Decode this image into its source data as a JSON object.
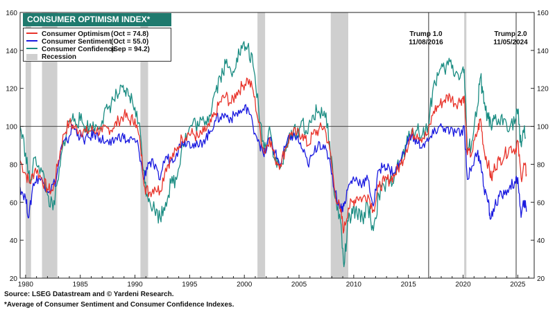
{
  "chart_data": {
    "type": "line",
    "title": "CONSUMER OPTIMISM INDEX*",
    "x_ticks": [
      "1980",
      "1985",
      "1990",
      "1995",
      "2000",
      "2005",
      "2010",
      "2015",
      "2020",
      "2025"
    ],
    "y_ticks": [
      "20",
      "40",
      "60",
      "80",
      "100",
      "120",
      "140",
      "160"
    ],
    "xlim": [
      1979.5,
      2026.5
    ],
    "ylim": [
      20,
      160
    ],
    "reference_line": 100,
    "grid": false,
    "legend_position": "top-left",
    "series": [
      {
        "name": "Consumer Optimism",
        "legend_value": "(Oct = 74.8)",
        "color": "#e8332a",
        "points": [
          [
            1979.5,
            82
          ],
          [
            1980.0,
            75
          ],
          [
            1980.4,
            70
          ],
          [
            1980.9,
            78
          ],
          [
            1981.5,
            72
          ],
          [
            1982.0,
            67
          ],
          [
            1982.5,
            66
          ],
          [
            1983.0,
            82
          ],
          [
            1983.5,
            96
          ],
          [
            1984.0,
            102
          ],
          [
            1984.5,
            99
          ],
          [
            1985.0,
            98
          ],
          [
            1985.5,
            97
          ],
          [
            1986.0,
            98
          ],
          [
            1986.5,
            98
          ],
          [
            1987.0,
            97
          ],
          [
            1987.5,
            99
          ],
          [
            1988.0,
            99
          ],
          [
            1988.5,
            103
          ],
          [
            1989.0,
            106
          ],
          [
            1989.5,
            103
          ],
          [
            1990.0,
            104
          ],
          [
            1990.5,
            90
          ],
          [
            1990.9,
            68
          ],
          [
            1991.3,
            65
          ],
          [
            1991.8,
            68
          ],
          [
            1992.3,
            66
          ],
          [
            1992.8,
            78
          ],
          [
            1993.3,
            83
          ],
          [
            1993.8,
            87
          ],
          [
            1994.3,
            94
          ],
          [
            1994.8,
            96
          ],
          [
            1995.3,
            96
          ],
          [
            1995.8,
            94
          ],
          [
            1996.3,
            97
          ],
          [
            1996.8,
            100
          ],
          [
            1997.3,
            106
          ],
          [
            1997.8,
            113
          ],
          [
            1998.3,
            116
          ],
          [
            1998.8,
            112
          ],
          [
            1999.3,
            118
          ],
          [
            1999.8,
            121
          ],
          [
            2000.3,
            125
          ],
          [
            2000.8,
            119
          ],
          [
            2001.3,
            102
          ],
          [
            2001.8,
            86
          ],
          [
            2002.3,
            94
          ],
          [
            2002.8,
            83
          ],
          [
            2003.3,
            80
          ],
          [
            2003.8,
            89
          ],
          [
            2004.3,
            97
          ],
          [
            2004.8,
            96
          ],
          [
            2005.3,
            96
          ],
          [
            2005.8,
            90
          ],
          [
            2006.3,
            96
          ],
          [
            2006.8,
            98
          ],
          [
            2007.3,
            100
          ],
          [
            2007.8,
            88
          ],
          [
            2008.3,
            65
          ],
          [
            2008.8,
            55
          ],
          [
            2009.1,
            45
          ],
          [
            2009.5,
            57
          ],
          [
            2009.9,
            60
          ],
          [
            2010.3,
            63
          ],
          [
            2010.8,
            62
          ],
          [
            2011.3,
            64
          ],
          [
            2011.8,
            56
          ],
          [
            2012.3,
            68
          ],
          [
            2012.8,
            71
          ],
          [
            2013.3,
            72
          ],
          [
            2013.8,
            75
          ],
          [
            2014.3,
            80
          ],
          [
            2014.8,
            88
          ],
          [
            2015.3,
            96
          ],
          [
            2015.8,
            96
          ],
          [
            2016.3,
            94
          ],
          [
            2016.8,
            96
          ],
          [
            2017.3,
            108
          ],
          [
            2017.8,
            111
          ],
          [
            2018.3,
            114
          ],
          [
            2018.8,
            116
          ],
          [
            2019.3,
            112
          ],
          [
            2019.8,
            114
          ],
          [
            2020.1,
            116
          ],
          [
            2020.4,
            85
          ],
          [
            2020.8,
            86
          ],
          [
            2021.3,
            97
          ],
          [
            2021.6,
            104
          ],
          [
            2021.9,
            88
          ],
          [
            2022.3,
            80
          ],
          [
            2022.6,
            72
          ],
          [
            2022.9,
            79
          ],
          [
            2023.3,
            82
          ],
          [
            2023.8,
            85
          ],
          [
            2024.3,
            89
          ],
          [
            2024.8,
            88
          ],
          [
            2025.0,
            92
          ],
          [
            2025.3,
            73
          ],
          [
            2025.6,
            80
          ],
          [
            2025.79,
            74.8
          ]
        ]
      },
      {
        "name": "Consumer Sentiment",
        "legend_value": "(Oct = 55.0)",
        "color": "#1a1adf",
        "points": [
          [
            1979.5,
            68
          ],
          [
            1980.0,
            62
          ],
          [
            1980.3,
            52
          ],
          [
            1980.7,
            70
          ],
          [
            1981.2,
            73
          ],
          [
            1981.7,
            70
          ],
          [
            1982.2,
            66
          ],
          [
            1982.8,
            72
          ],
          [
            1983.3,
            90
          ],
          [
            1983.8,
            92
          ],
          [
            1984.3,
            100
          ],
          [
            1984.8,
            96
          ],
          [
            1985.3,
            93
          ],
          [
            1985.8,
            94
          ],
          [
            1986.3,
            96
          ],
          [
            1986.8,
            94
          ],
          [
            1987.3,
            92
          ],
          [
            1987.8,
            90
          ],
          [
            1988.3,
            94
          ],
          [
            1988.8,
            95
          ],
          [
            1989.3,
            92
          ],
          [
            1989.8,
            93
          ],
          [
            1990.3,
            90
          ],
          [
            1990.8,
            72
          ],
          [
            1991.2,
            81
          ],
          [
            1991.7,
            80
          ],
          [
            1992.2,
            72
          ],
          [
            1992.8,
            84
          ],
          [
            1993.3,
            82
          ],
          [
            1993.8,
            86
          ],
          [
            1994.3,
            92
          ],
          [
            1994.8,
            92
          ],
          [
            1995.3,
            91
          ],
          [
            1995.8,
            89
          ],
          [
            1996.3,
            93
          ],
          [
            1996.8,
            96
          ],
          [
            1997.3,
            103
          ],
          [
            1997.8,
            105
          ],
          [
            1998.3,
            106
          ],
          [
            1998.8,
            104
          ],
          [
            1999.3,
            107
          ],
          [
            1999.8,
            108
          ],
          [
            2000.3,
            110
          ],
          [
            2000.8,
            100
          ],
          [
            2001.3,
            93
          ],
          [
            2001.8,
            84
          ],
          [
            2002.3,
            94
          ],
          [
            2002.8,
            86
          ],
          [
            2003.3,
            80
          ],
          [
            2003.8,
            90
          ],
          [
            2004.3,
            95
          ],
          [
            2004.8,
            94
          ],
          [
            2005.3,
            88
          ],
          [
            2005.8,
            80
          ],
          [
            2006.3,
            85
          ],
          [
            2006.8,
            92
          ],
          [
            2007.3,
            88
          ],
          [
            2007.8,
            83
          ],
          [
            2008.3,
            65
          ],
          [
            2008.8,
            57
          ],
          [
            2009.1,
            58
          ],
          [
            2009.5,
            68
          ],
          [
            2009.9,
            72
          ],
          [
            2010.3,
            72
          ],
          [
            2010.8,
            70
          ],
          [
            2011.3,
            72
          ],
          [
            2011.8,
            58
          ],
          [
            2012.3,
            77
          ],
          [
            2012.8,
            80
          ],
          [
            2013.3,
            77
          ],
          [
            2013.8,
            76
          ],
          [
            2014.3,
            82
          ],
          [
            2014.8,
            90
          ],
          [
            2015.3,
            95
          ],
          [
            2015.8,
            91
          ],
          [
            2016.3,
            90
          ],
          [
            2016.8,
            92
          ],
          [
            2017.3,
            96
          ],
          [
            2017.8,
            100
          ],
          [
            2018.3,
            99
          ],
          [
            2018.8,
            97
          ],
          [
            2019.3,
            97
          ],
          [
            2019.8,
            96
          ],
          [
            2020.1,
            100
          ],
          [
            2020.4,
            72
          ],
          [
            2020.8,
            79
          ],
          [
            2021.3,
            86
          ],
          [
            2021.6,
            82
          ],
          [
            2021.9,
            68
          ],
          [
            2022.3,
            60
          ],
          [
            2022.5,
            51
          ],
          [
            2022.9,
            58
          ],
          [
            2023.3,
            63
          ],
          [
            2023.8,
            64
          ],
          [
            2024.3,
            69
          ],
          [
            2024.8,
            70
          ],
          [
            2025.0,
            73
          ],
          [
            2025.3,
            52
          ],
          [
            2025.6,
            61
          ],
          [
            2025.79,
            55.0
          ]
        ]
      },
      {
        "name": "Consumer Confidence",
        "legend_value": "(Sep = 94.2)",
        "color": "#1a8c82",
        "points": [
          [
            1979.5,
            100
          ],
          [
            1980.0,
            86
          ],
          [
            1980.4,
            70
          ],
          [
            1980.9,
            84
          ],
          [
            1981.5,
            76
          ],
          [
            1982.0,
            64
          ],
          [
            1982.5,
            56
          ],
          [
            1983.0,
            72
          ],
          [
            1983.5,
            92
          ],
          [
            1984.0,
            103
          ],
          [
            1984.5,
            104
          ],
          [
            1985.0,
            103
          ],
          [
            1985.5,
            100
          ],
          [
            1986.0,
            99
          ],
          [
            1986.5,
            100
          ],
          [
            1987.0,
            103
          ],
          [
            1987.5,
            109
          ],
          [
            1988.0,
            114
          ],
          [
            1988.5,
            117
          ],
          [
            1989.0,
            118
          ],
          [
            1989.5,
            116
          ],
          [
            1990.0,
            110
          ],
          [
            1990.5,
            96
          ],
          [
            1990.9,
            70
          ],
          [
            1991.3,
            62
          ],
          [
            1991.8,
            56
          ],
          [
            1992.3,
            52
          ],
          [
            1992.8,
            60
          ],
          [
            1993.3,
            70
          ],
          [
            1993.8,
            72
          ],
          [
            1994.3,
            90
          ],
          [
            1994.8,
            96
          ],
          [
            1995.3,
            102
          ],
          [
            1995.8,
            100
          ],
          [
            1996.3,
            103
          ],
          [
            1996.8,
            106
          ],
          [
            1997.3,
            118
          ],
          [
            1997.8,
            126
          ],
          [
            1998.3,
            133
          ],
          [
            1998.8,
            128
          ],
          [
            1999.3,
            136
          ],
          [
            1999.8,
            141
          ],
          [
            2000.3,
            142
          ],
          [
            2000.8,
            132
          ],
          [
            2001.3,
            110
          ],
          [
            2001.8,
            88
          ],
          [
            2002.3,
            100
          ],
          [
            2002.8,
            82
          ],
          [
            2003.3,
            78
          ],
          [
            2003.8,
            87
          ],
          [
            2004.3,
            98
          ],
          [
            2004.8,
            96
          ],
          [
            2005.3,
            103
          ],
          [
            2005.8,
            96
          ],
          [
            2006.3,
            106
          ],
          [
            2006.8,
            108
          ],
          [
            2007.3,
            108
          ],
          [
            2007.8,
            92
          ],
          [
            2008.3,
            62
          ],
          [
            2008.8,
            50
          ],
          [
            2009.1,
            26
          ],
          [
            2009.5,
            50
          ],
          [
            2009.9,
            54
          ],
          [
            2010.3,
            54
          ],
          [
            2010.8,
            52
          ],
          [
            2011.3,
            58
          ],
          [
            2011.8,
            45
          ],
          [
            2012.3,
            64
          ],
          [
            2012.8,
            68
          ],
          [
            2013.3,
            70
          ],
          [
            2013.8,
            76
          ],
          [
            2014.3,
            80
          ],
          [
            2014.8,
            90
          ],
          [
            2015.3,
            98
          ],
          [
            2015.8,
            98
          ],
          [
            2016.3,
            96
          ],
          [
            2016.8,
            100
          ],
          [
            2017.3,
            122
          ],
          [
            2017.8,
            128
          ],
          [
            2018.3,
            130
          ],
          [
            2018.8,
            134
          ],
          [
            2019.3,
            128
          ],
          [
            2019.8,
            128
          ],
          [
            2020.1,
            130
          ],
          [
            2020.4,
            86
          ],
          [
            2020.8,
            92
          ],
          [
            2021.3,
            110
          ],
          [
            2021.6,
            126
          ],
          [
            2021.9,
            112
          ],
          [
            2022.3,
            104
          ],
          [
            2022.6,
            98
          ],
          [
            2022.9,
            104
          ],
          [
            2023.3,
            102
          ],
          [
            2023.8,
            104
          ],
          [
            2024.3,
            100
          ],
          [
            2024.8,
            104
          ],
          [
            2025.0,
            108
          ],
          [
            2025.3,
            90
          ],
          [
            2025.5,
            98
          ],
          [
            2025.71,
            94.2
          ]
        ]
      }
    ],
    "recessions": [
      [
        1980.0,
        1980.5
      ],
      [
        1981.5,
        1982.9
      ],
      [
        1990.5,
        1991.2
      ],
      [
        2001.2,
        2001.9
      ],
      [
        2007.9,
        2009.5
      ],
      [
        2020.1,
        2020.3
      ]
    ],
    "recession_label": "Recession",
    "recession_color": "#cfcfcf",
    "annotations": [
      {
        "line1": "Trump 1.0",
        "line2": "11/08/2016",
        "x": 2016.85
      },
      {
        "line1": "Trump 2.0",
        "line2": "11/05/2024",
        "x": 2024.85
      }
    ]
  },
  "footer": {
    "source": "Source: LSEG Datastream and © Yardeni Research.",
    "note": "*Average of Consumer Sentiment and Consumer Confidence Indexes."
  }
}
